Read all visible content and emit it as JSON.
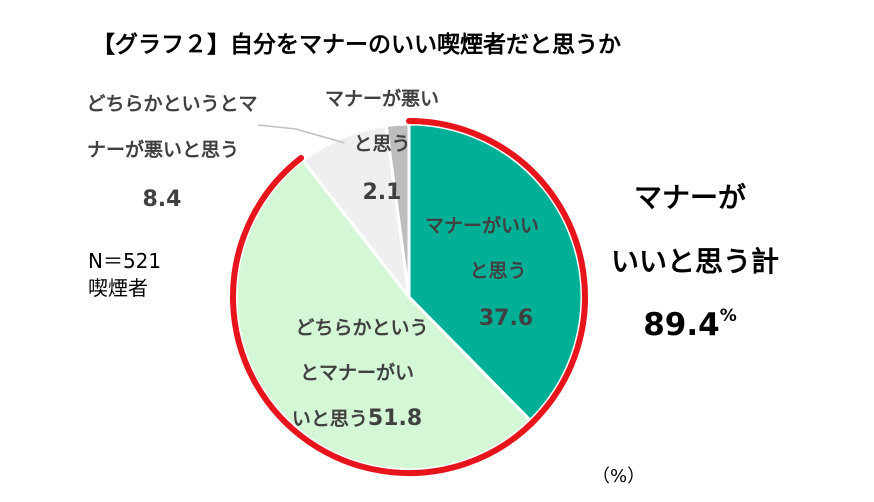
{
  "chart_data": {
    "type": "pie",
    "title": "【グラフ２】自分をマナーのいい喫煙者だと思うか",
    "unit_label": "（%）",
    "sample_note": {
      "n": "N＝521",
      "group": "喫煙者"
    },
    "slices": [
      {
        "label_lines": [
          "マナーがいい",
          "と思う"
        ],
        "value": 37.6,
        "value_text": "37.6",
        "color": "#00B096"
      },
      {
        "label_lines": [
          "どちらかという",
          "とマナーがい",
          "いと思う"
        ],
        "value": 51.8,
        "value_text": "51.8",
        "color": "#D4F7D6"
      },
      {
        "label_lines": [
          "どちらかというとマ",
          "ナーが悪いと思う"
        ],
        "value": 8.4,
        "value_text": "8.4",
        "color": "#EFEFEF"
      },
      {
        "label_lines": [
          "マナーが悪い",
          "と思う"
        ],
        "value": 2.1,
        "value_text": "2.1",
        "color": "#BDBDBD"
      }
    ],
    "summary": {
      "lines": [
        "マナーが",
        "いいと思う計"
      ],
      "value": "89.4",
      "unit": "%"
    },
    "highlight_color": "#E8141B"
  }
}
